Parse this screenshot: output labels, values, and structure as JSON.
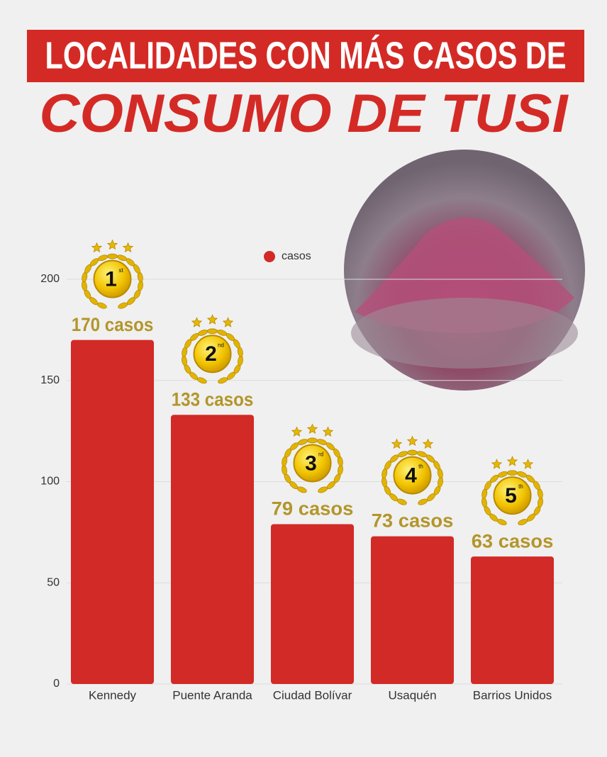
{
  "chart_data": {
    "type": "bar",
    "title": "LOCALIDADES CON MÁS CASOS DE",
    "subtitle": "CONSUMO DE TUSI",
    "categories": [
      "Kennedy",
      "Puente Aranda",
      "Ciudad Bolívar",
      "Usaquén",
      "Barrios Unidos"
    ],
    "series": [
      {
        "name": "casos",
        "color": "#d22a26",
        "values": [
          170,
          133,
          79,
          73,
          63
        ],
        "value_labels": [
          "170 casos",
          "133 casos",
          "79 casos",
          "73 casos",
          "63 casos"
        ]
      }
    ],
    "rank_badges": [
      {
        "rank": "1",
        "suffix": "st"
      },
      {
        "rank": "2",
        "suffix": "nd"
      },
      {
        "rank": "3",
        "suffix": "rd"
      },
      {
        "rank": "4",
        "suffix": "th"
      },
      {
        "rank": "5",
        "suffix": "th"
      }
    ],
    "ylim": [
      0,
      200
    ],
    "yticks": [
      0,
      50,
      100,
      150,
      200
    ],
    "grid": true,
    "legend": "top"
  }
}
